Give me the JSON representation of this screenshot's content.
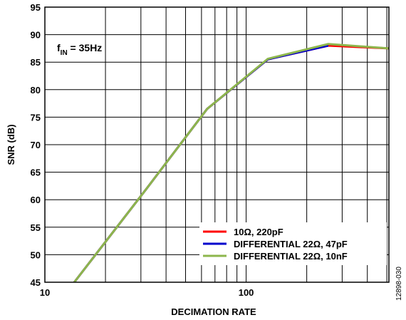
{
  "chart_data": {
    "type": "line",
    "xlabel": "DECIMATION RATE",
    "ylabel": "SNR (dB)",
    "xscale": "log",
    "xlim": [
      10,
      512
    ],
    "ylim": [
      45,
      95
    ],
    "x_ticks": [
      {
        "value": 10,
        "label": "10"
      },
      {
        "value": 100,
        "label": "100"
      }
    ],
    "y_ticks": [
      {
        "value": 45,
        "label": "45"
      },
      {
        "value": 50,
        "label": "50"
      },
      {
        "value": 55,
        "label": "55"
      },
      {
        "value": 60,
        "label": "60"
      },
      {
        "value": 65,
        "label": "65"
      },
      {
        "value": 70,
        "label": "70"
      },
      {
        "value": 75,
        "label": "75"
      },
      {
        "value": 80,
        "label": "80"
      },
      {
        "value": 85,
        "label": "85"
      },
      {
        "value": 90,
        "label": "90"
      },
      {
        "value": 95,
        "label": "95"
      }
    ],
    "grid": true,
    "legend_position": "bottom-right",
    "annotation": {
      "main": "f",
      "subscript": "IN",
      "rest": " = 35Hz"
    },
    "figure_id": "12898-030",
    "series": [
      {
        "name": "10Ω, 220pF",
        "color": "#ff0000",
        "x": [
          14,
          32,
          64,
          128,
          256,
          512
        ],
        "y": [
          45,
          62,
          76.5,
          85.5,
          88,
          87.5
        ]
      },
      {
        "name": "DIFFERENTIAL 22Ω, 47pF",
        "color": "#0000cc",
        "x": [
          14,
          32,
          64,
          128,
          256
        ],
        "y": [
          45,
          62,
          76.5,
          85.5,
          88
        ]
      },
      {
        "name": "DIFFERENTIAL 22Ω, 10nF",
        "color": "#8db64c",
        "x": [
          14,
          32,
          64,
          128,
          256,
          512
        ],
        "y": [
          45,
          62,
          76.5,
          85.6,
          88.3,
          87.5
        ]
      }
    ]
  }
}
